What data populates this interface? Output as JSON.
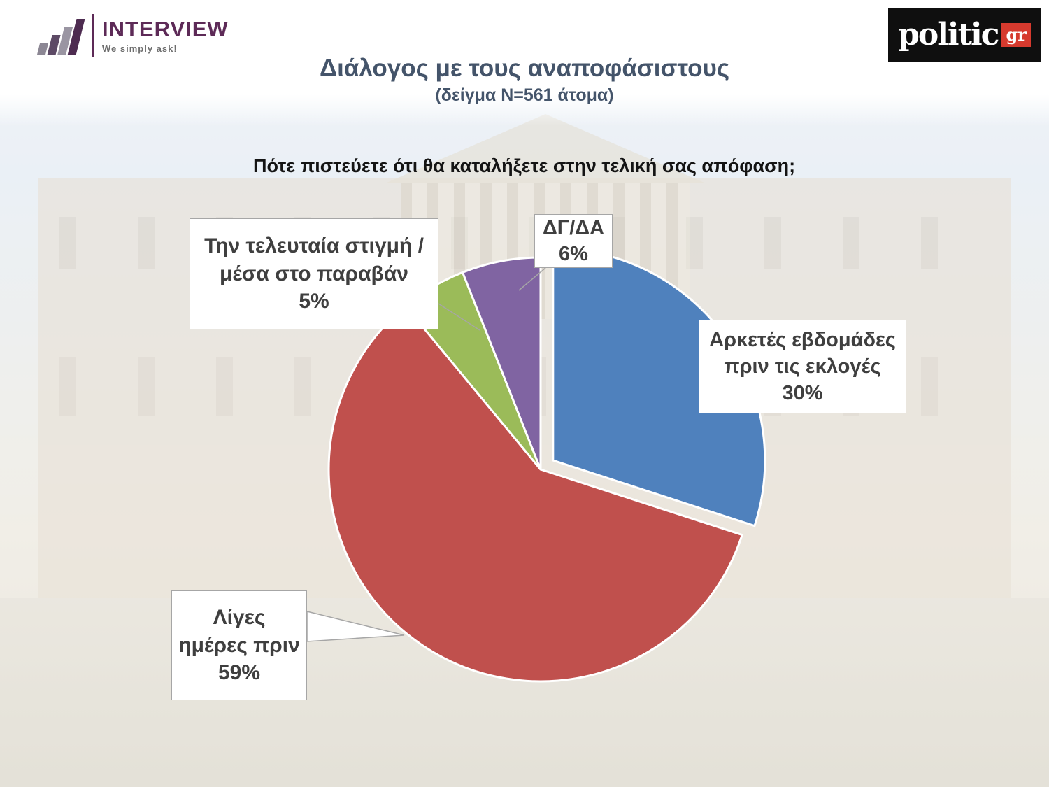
{
  "logos": {
    "interview": {
      "name": "INTERVIEW",
      "tagline": "We simply ask!",
      "brand_color": "#5d2a57"
    },
    "politic": {
      "name": "politic",
      "suffix": "gr",
      "bg_color": "#0f0f0f",
      "accent_color": "#d63a2e"
    }
  },
  "chart_data": {
    "type": "pie",
    "title": "Διάλογος με τους αναποφάσιστους",
    "sample_note": "(δείγμα Ν=561 άτομα)",
    "question": "Πότε πιστεύετε ότι θα καταλήξετε στην τελική σας απόφαση;",
    "title_color": "#44546a",
    "direction": "clockwise",
    "start_angle_deg": 0,
    "label_style": "callout-boxes",
    "slices": [
      {
        "label": "Αρκετές εβδομάδες πριν τις εκλογές",
        "value": 30,
        "value_label": "30%",
        "color": "#4F81BD",
        "exploded": true
      },
      {
        "label": "Λίγες ημέρες πριν",
        "value": 59,
        "value_label": "59%",
        "color": "#C0504D",
        "exploded": false
      },
      {
        "label": "Την τελευταία στιγμή / μέσα στο παραβάν",
        "value": 5,
        "value_label": "5%",
        "color": "#9BBB59",
        "exploded": false
      },
      {
        "label": "ΔΓ/ΔΑ",
        "value": 6,
        "value_label": "6%",
        "color": "#8064A2",
        "exploded": false
      }
    ]
  }
}
